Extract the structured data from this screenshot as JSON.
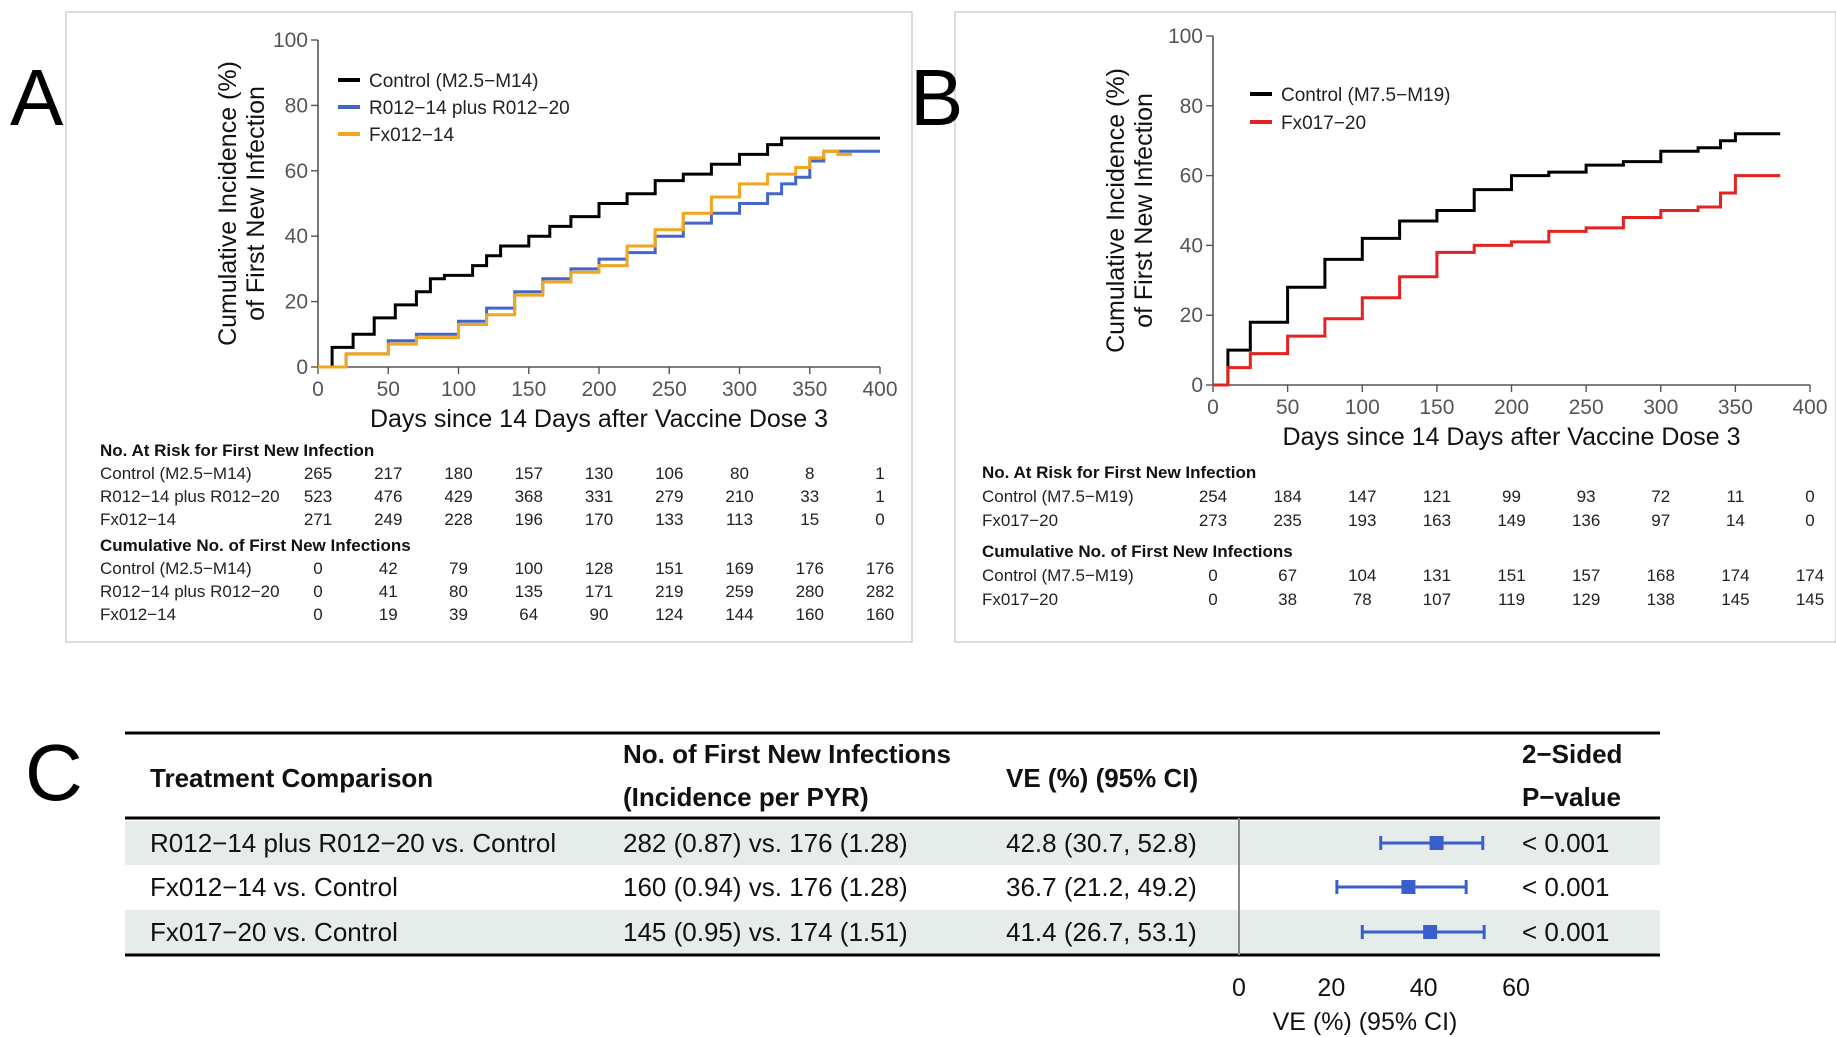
{
  "panels": {
    "a": {
      "letter": "A",
      "ylabel_line1": "Cumulative Incidence (%)",
      "ylabel_line2": "of First New Infection",
      "xlabel": "Days since 14 Days after Vaccine Dose 3",
      "xticks": [
        "0",
        "50",
        "100",
        "150",
        "200",
        "250",
        "300",
        "350",
        "400"
      ],
      "yticks": [
        "0",
        "20",
        "40",
        "60",
        "80",
        "100"
      ],
      "risk_table": {
        "at_risk_title": "No. At Risk for First New Infection",
        "at_risk_rows": [
          {
            "label": "Control (M2.5−M14)",
            "values": [
              "265",
              "217",
              "180",
              "157",
              "130",
              "106",
              "80",
              "8",
              "1"
            ]
          },
          {
            "label": "R012−14 plus R012−20",
            "values": [
              "523",
              "476",
              "429",
              "368",
              "331",
              "279",
              "210",
              "33",
              "1"
            ]
          },
          {
            "label": "Fx012−14",
            "values": [
              "271",
              "249",
              "228",
              "196",
              "170",
              "133",
              "113",
              "15",
              "0"
            ]
          }
        ],
        "cum_title": "Cumulative No. of First New Infections",
        "cum_rows": [
          {
            "label": "Control (M2.5−M14)",
            "values": [
              "0",
              "42",
              "79",
              "100",
              "128",
              "151",
              "169",
              "176",
              "176"
            ]
          },
          {
            "label": "R012−14 plus R012−20",
            "values": [
              "0",
              "41",
              "80",
              "135",
              "171",
              "219",
              "259",
              "280",
              "282"
            ]
          },
          {
            "label": "Fx012−14",
            "values": [
              "0",
              "19",
              "39",
              "64",
              "90",
              "124",
              "144",
              "160",
              "160"
            ]
          }
        ]
      }
    },
    "b": {
      "letter": "B",
      "ylabel_line1": "Cumulative Incidence (%)",
      "ylabel_line2": "of First New Infection",
      "xlabel": "Days since 14 Days after Vaccine Dose 3",
      "xticks": [
        "0",
        "50",
        "100",
        "150",
        "200",
        "250",
        "300",
        "350",
        "400"
      ],
      "yticks": [
        "0",
        "20",
        "40",
        "60",
        "80",
        "100"
      ],
      "risk_table": {
        "at_risk_title": "No. At Risk for First New Infection",
        "at_risk_rows": [
          {
            "label": "Control (M7.5−M19)",
            "values": [
              "254",
              "184",
              "147",
              "121",
              "99",
              "93",
              "72",
              "11",
              "0"
            ]
          },
          {
            "label": "Fx017−20",
            "values": [
              "273",
              "235",
              "193",
              "163",
              "149",
              "136",
              "97",
              "14",
              "0"
            ]
          }
        ],
        "cum_title": "Cumulative No. of First New Infections",
        "cum_rows": [
          {
            "label": "Control (M7.5−M19)",
            "values": [
              "0",
              "67",
              "104",
              "131",
              "151",
              "157",
              "168",
              "174",
              "174"
            ]
          },
          {
            "label": "Fx017−20",
            "values": [
              "0",
              "38",
              "78",
              "107",
              "119",
              "129",
              "138",
              "145",
              "145"
            ]
          }
        ]
      }
    },
    "c": {
      "letter": "C",
      "headers": {
        "treatment": "Treatment Comparison",
        "infections_line1": "No. of First New Infections",
        "infections_line2": "(Incidence per PYR)",
        "ve": "VE (%) (95% CI)",
        "p_line1": "2−Sided",
        "p_line2": "P−value"
      },
      "rows": [
        {
          "treatment": "R012−14 plus R012−20 vs. Control",
          "infections": "282 (0.87) vs. 176 (1.28)",
          "ve_text": "42.8 (30.7, 52.8)",
          "p": "< 0.001"
        },
        {
          "treatment": "Fx012−14 vs. Control",
          "infections": "160 (0.94) vs. 176 (1.28)",
          "ve_text": "36.7 (21.2, 49.2)",
          "p": "< 0.001"
        },
        {
          "treatment": "Fx017−20 vs. Control",
          "infections": "145 (0.95) vs. 174 (1.51)",
          "ve_text": "41.4 (26.7, 53.1)",
          "p": "< 0.001"
        }
      ],
      "forest_xticks": [
        "0",
        "20",
        "40",
        "60"
      ],
      "forest_xlabel": "VE (%) (95% CI)"
    }
  },
  "chart_data": [
    {
      "type": "line",
      "panel": "A",
      "xlabel": "Days since 14 Days after Vaccine Dose 3",
      "ylabel": "Cumulative Incidence (%) of First New Infection",
      "xlim": [
        0,
        400
      ],
      "ylim": [
        0,
        100
      ],
      "legend_position": "top-left",
      "series": [
        {
          "name": "Control (M2.5−M14)",
          "color": "#000000",
          "x": [
            0,
            10,
            25,
            40,
            55,
            70,
            80,
            90,
            110,
            120,
            130,
            150,
            165,
            180,
            200,
            220,
            240,
            260,
            280,
            300,
            320,
            330,
            340,
            350,
            360,
            370,
            380,
            400
          ],
          "y": [
            0,
            6,
            10,
            15,
            19,
            23,
            27,
            28,
            31,
            34,
            37,
            40,
            43,
            46,
            50,
            53,
            57,
            59,
            62,
            65,
            68,
            70,
            70,
            70,
            70,
            70,
            70,
            70
          ]
        },
        {
          "name": "R012−14 plus R012−20",
          "color": "#4466c4",
          "x": [
            0,
            20,
            50,
            70,
            100,
            120,
            140,
            160,
            180,
            200,
            220,
            240,
            260,
            280,
            300,
            320,
            330,
            340,
            350,
            360,
            370,
            380,
            400
          ],
          "y": [
            0,
            4,
            8,
            10,
            14,
            18,
            23,
            27,
            30,
            33,
            35,
            40,
            44,
            47,
            50,
            53,
            56,
            58,
            63,
            66,
            66,
            66,
            66
          ]
        },
        {
          "name": "Fx012−14",
          "color": "#f2a51f",
          "x": [
            0,
            20,
            50,
            70,
            100,
            120,
            140,
            160,
            180,
            200,
            220,
            240,
            260,
            280,
            300,
            320,
            340,
            350,
            360,
            370,
            380
          ],
          "y": [
            0,
            4,
            7,
            9,
            13,
            16,
            22,
            26,
            29,
            31,
            37,
            42,
            47,
            52,
            56,
            59,
            61,
            64,
            66,
            65,
            65
          ]
        }
      ]
    },
    {
      "type": "line",
      "panel": "B",
      "xlabel": "Days since 14 Days after Vaccine Dose 3",
      "ylabel": "Cumulative Incidence (%) of First New Infection",
      "xlim": [
        0,
        400
      ],
      "ylim": [
        0,
        100
      ],
      "legend_position": "top-left",
      "series": [
        {
          "name": "Control (M7.5−M19)",
          "color": "#000000",
          "x": [
            0,
            10,
            25,
            50,
            75,
            100,
            125,
            150,
            175,
            200,
            225,
            250,
            275,
            300,
            325,
            340,
            350,
            380
          ],
          "y": [
            0,
            10,
            18,
            28,
            36,
            42,
            47,
            50,
            56,
            60,
            61,
            63,
            64,
            67,
            68,
            70,
            72,
            72
          ]
        },
        {
          "name": "Fx017−20",
          "color": "#e52222",
          "x": [
            0,
            10,
            25,
            50,
            75,
            100,
            125,
            150,
            175,
            200,
            225,
            250,
            275,
            300,
            325,
            340,
            350,
            380
          ],
          "y": [
            0,
            5,
            9,
            14,
            19,
            25,
            31,
            38,
            40,
            41,
            44,
            45,
            48,
            50,
            51,
            55,
            60,
            60
          ]
        }
      ]
    },
    {
      "type": "table",
      "panel": "C",
      "columns": [
        "Treatment Comparison",
        "No. of First New Infections (Incidence per PYR)",
        "VE (%) (95% CI)",
        "2−Sided P−value"
      ],
      "forest_xlim": [
        0,
        60
      ],
      "rows": [
        {
          "treatment": "R012−14 plus R012−20 vs. Control",
          "ve": 42.8,
          "lo": 30.7,
          "hi": 52.8,
          "p": "< 0.001"
        },
        {
          "treatment": "Fx012−14 vs. Control",
          "ve": 36.7,
          "lo": 21.2,
          "hi": 49.2,
          "p": "< 0.001"
        },
        {
          "treatment": "Fx017−20 vs. Control",
          "ve": 41.4,
          "lo": 26.7,
          "hi": 53.1,
          "p": "< 0.001"
        }
      ]
    }
  ]
}
